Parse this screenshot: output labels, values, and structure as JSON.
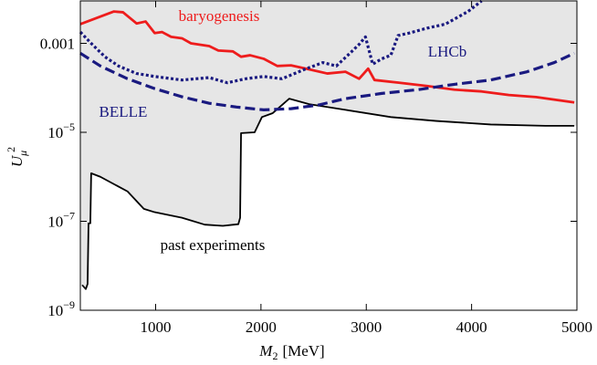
{
  "chart_data": {
    "type": "line",
    "x_label": "M",
    "x_label_sub": "2",
    "x_label_unit": "[MeV]",
    "y_label": "U",
    "y_label_sub": "μ",
    "y_label_sup": "2",
    "xlim": [
      285,
      5000
    ],
    "xticks": [
      1000,
      2000,
      3000,
      4000,
      5000
    ],
    "ylim": [
      1e-09,
      0.009
    ],
    "yscale": "log",
    "yticks": [
      {
        "value": 1e-09,
        "label": "10",
        "exponent": "−9"
      },
      {
        "value": 1e-07,
        "label": "10",
        "exponent": "−7"
      },
      {
        "value": 1e-05,
        "label": "10",
        "exponent": "−5"
      },
      0.001
    ],
    "background": "#e6e6e6",
    "series": [
      {
        "name": "past experiments",
        "color": "#000000",
        "style": "solid",
        "fill": "#e6e6e6",
        "x": [
          302,
          337,
          354,
          363,
          380,
          388,
          475,
          733,
          888,
          991,
          1250,
          1466,
          1638,
          1785,
          1802,
          1811,
          1940,
          2009,
          2112,
          2268,
          2457,
          2802,
          3233,
          3664,
          4181,
          4699,
          4975
        ],
        "values": [
          3.7e-09,
          3e-09,
          3.9e-09,
          9e-08,
          9e-08,
          1.2e-06,
          1e-06,
          4.7e-07,
          1.9e-07,
          1.6e-07,
          1.2e-07,
          8.4e-08,
          7.9e-08,
          8.6e-08,
          1.2e-07,
          9.6e-06,
          1e-05,
          2.2e-05,
          2.7e-05,
          5.7e-05,
          4.3e-05,
          3.2e-05,
          2.2e-05,
          1.8e-05,
          1.5e-05,
          1.4e-05,
          1.4e-05
        ]
      },
      {
        "name": "baryogenesis",
        "color": "#ee1c1c",
        "style": "solid",
        "x": [
          285,
          604,
          690,
          819,
          905,
          991,
          1060,
          1147,
          1250,
          1336,
          1509,
          1595,
          1733,
          1811,
          1897,
          2026,
          2155,
          2285,
          2457,
          2630,
          2802,
          2932,
          3018,
          3078,
          3319,
          3578,
          3837,
          4095,
          4354,
          4613,
          4975
        ],
        "values": [
          0.0027,
          0.0052,
          0.005,
          0.0028,
          0.0031,
          0.0017,
          0.0018,
          0.0014,
          0.0013,
          0.001,
          0.00087,
          0.00069,
          0.00066,
          0.0005,
          0.00054,
          0.00045,
          0.00031,
          0.00032,
          0.00026,
          0.00021,
          0.00023,
          0.00016,
          0.00027,
          0.00015,
          0.00013,
          0.00011,
          9.1e-05,
          8.3e-05,
          6.9e-05,
          6.2e-05,
          4.7e-05
        ]
      },
      {
        "name": "LHCb",
        "color": "#1a1a80",
        "style": "dotted",
        "x": [
          285,
          388,
          518,
          647,
          819,
          991,
          1250,
          1509,
          1681,
          1854,
          2026,
          2199,
          2414,
          2587,
          2716,
          2845,
          2932,
          2992,
          3061,
          3147,
          3233,
          3302,
          3405,
          3578,
          3750,
          3966,
          4095
        ],
        "values": [
          0.0018,
          0.001,
          0.0005,
          0.00031,
          0.00021,
          0.00018,
          0.00015,
          0.00017,
          0.00013,
          0.00016,
          0.00018,
          0.00016,
          0.00026,
          0.00037,
          0.00031,
          0.0006,
          0.00095,
          0.0014,
          0.00034,
          0.00045,
          0.00054,
          0.0015,
          0.0017,
          0.0022,
          0.0027,
          0.0052,
          0.009
        ]
      },
      {
        "name": "BELLE",
        "color": "#1a1a80",
        "style": "dashed",
        "x": [
          285,
          475,
          733,
          991,
          1250,
          1509,
          1768,
          2026,
          2285,
          2543,
          2802,
          3147,
          3492,
          3837,
          4181,
          4526,
          4785,
          4975
        ],
        "values": [
          0.0006,
          0.00031,
          0.00016,
          9.6e-05,
          6.3e-05,
          4.5e-05,
          3.7e-05,
          3.2e-05,
          3.4e-05,
          4.1e-05,
          5.7e-05,
          7.5e-05,
          9.1e-05,
          0.00012,
          0.00015,
          0.00023,
          0.00037,
          0.0006
        ]
      }
    ]
  }
}
